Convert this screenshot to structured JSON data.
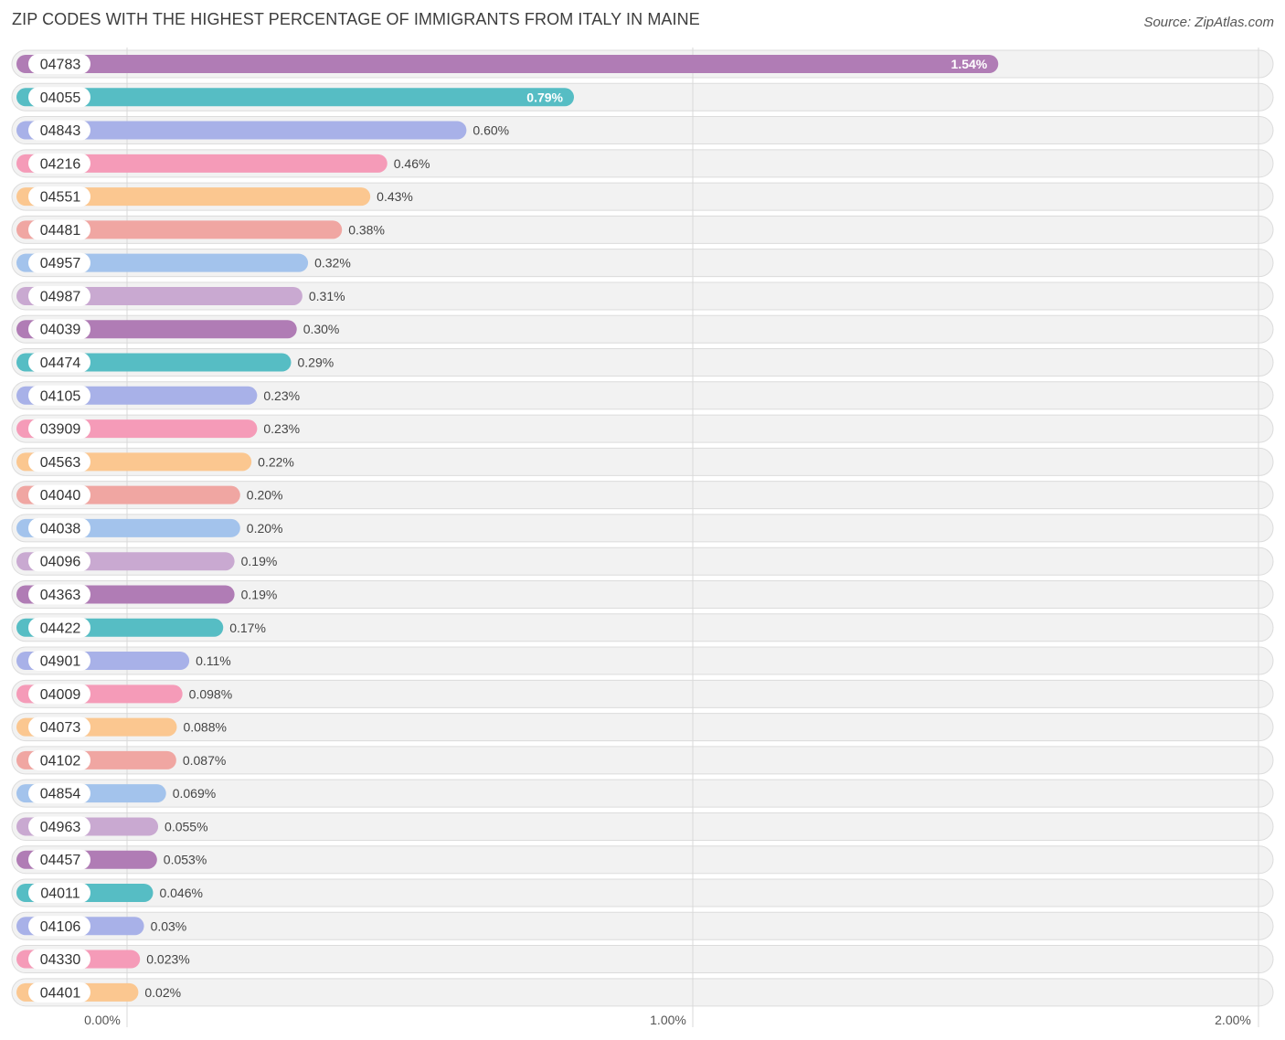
{
  "chart_data": {
    "type": "bar",
    "orientation": "horizontal",
    "title": "ZIP CODES WITH THE HIGHEST PERCENTAGE OF IMMIGRANTS FROM ITALY IN MAINE",
    "source": "Source: ZipAtlas.com",
    "xlim": [
      0,
      2.0
    ],
    "ticks": [
      {
        "value": 0,
        "label": "0.00%"
      },
      {
        "value": 1.0,
        "label": "1.00%"
      },
      {
        "value": 2.0,
        "label": "2.00%"
      }
    ],
    "grid": true,
    "categories": [
      "04783",
      "04055",
      "04843",
      "04216",
      "04551",
      "04481",
      "04957",
      "04987",
      "04039",
      "04474",
      "04105",
      "03909",
      "04563",
      "04040",
      "04038",
      "04096",
      "04363",
      "04422",
      "04901",
      "04009",
      "04073",
      "04102",
      "04854",
      "04963",
      "04457",
      "04011",
      "04106",
      "04330",
      "04401"
    ],
    "values": [
      1.54,
      0.79,
      0.6,
      0.46,
      0.43,
      0.38,
      0.32,
      0.31,
      0.3,
      0.29,
      0.23,
      0.23,
      0.22,
      0.2,
      0.2,
      0.19,
      0.19,
      0.17,
      0.11,
      0.098,
      0.088,
      0.087,
      0.069,
      0.055,
      0.053,
      0.046,
      0.03,
      0.023,
      0.02
    ],
    "value_labels": [
      "1.54%",
      "0.79%",
      "0.60%",
      "0.46%",
      "0.43%",
      "0.38%",
      "0.32%",
      "0.31%",
      "0.30%",
      "0.29%",
      "0.23%",
      "0.23%",
      "0.22%",
      "0.20%",
      "0.20%",
      "0.19%",
      "0.19%",
      "0.17%",
      "0.11%",
      "0.098%",
      "0.088%",
      "0.087%",
      "0.069%",
      "0.055%",
      "0.053%",
      "0.046%",
      "0.03%",
      "0.023%",
      "0.02%"
    ],
    "palette": [
      "#b07cb5",
      "#56bdc4",
      "#a8b1e8",
      "#f59bb8",
      "#fbc790",
      "#f0a6a2",
      "#a3c3ec",
      "#c9a9d1"
    ]
  }
}
